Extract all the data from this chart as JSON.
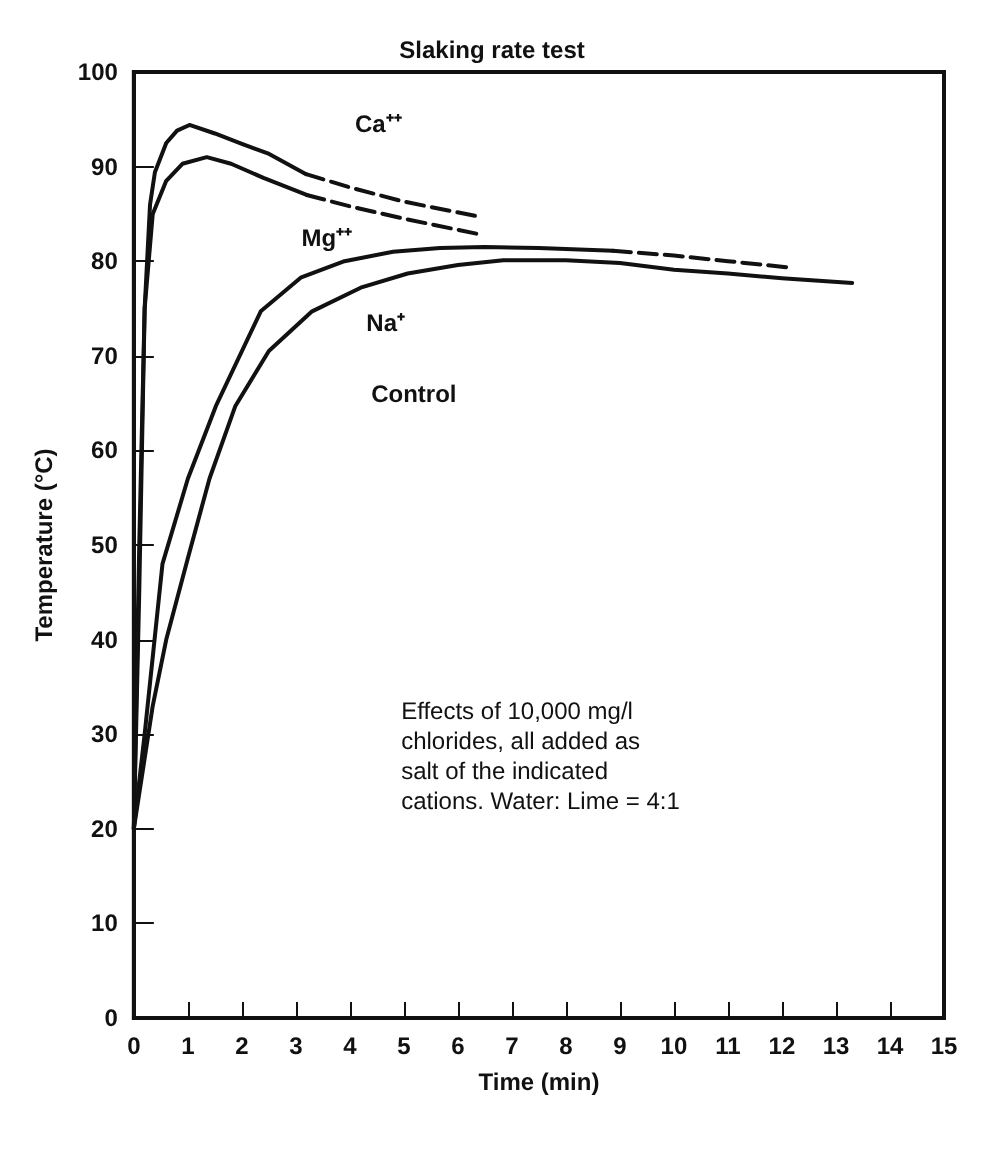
{
  "chart_data": {
    "type": "line",
    "title": "Slaking rate test",
    "xlabel": "Time (min)",
    "ylabel": "Temperature (°C)",
    "xlim": [
      0,
      15
    ],
    "xticks": [
      0,
      1,
      2,
      3,
      4,
      5,
      6,
      7,
      8,
      9,
      10,
      11,
      12,
      13,
      14,
      15
    ],
    "ylim": [
      0,
      100
    ],
    "yticks": [
      0,
      10,
      20,
      30,
      40,
      50,
      60,
      70,
      80,
      90,
      100
    ],
    "grid": false,
    "marker": "none",
    "series": [
      {
        "color": "#111111",
        "line_style": "solid",
        "x": [
          0,
          0.1,
          0.2,
          0.3,
          0.39,
          0.6,
          0.8,
          1.03,
          1.5,
          2,
          2.48,
          3.19
        ],
        "values": [
          20,
          45,
          75,
          86,
          89.4,
          92.5,
          93.8,
          94.4,
          93.5,
          92.4,
          91.4,
          89.2
        ]
      },
      {
        "color": "#111111",
        "line_style": "dashed",
        "x": [
          3.19,
          4,
          5,
          6.4
        ],
        "values": [
          89.2,
          87.8,
          86.3,
          84.7
        ]
      },
      {
        "color": "#111111",
        "line_style": "solid",
        "x": [
          0,
          0.1,
          0.2,
          0.35,
          0.6,
          0.9,
          1.35,
          1.8,
          2.4,
          3.2
        ],
        "values": [
          20,
          50,
          75,
          85,
          88.5,
          90.3,
          91,
          90.3,
          88.8,
          87
        ]
      },
      {
        "color": "#111111",
        "line_style": "dashed",
        "x": [
          3.2,
          4,
          5,
          6.35
        ],
        "values": [
          87,
          85.8,
          84.5,
          82.9
        ]
      },
      {
        "color": "#111111",
        "line_style": "solid",
        "x": [
          0,
          0.2,
          0.53,
          1,
          1.52,
          2.35,
          3.1,
          3.9,
          4.8,
          5.67,
          6.49,
          7.5,
          8.87
        ],
        "values": [
          20,
          30,
          48,
          57,
          64.7,
          74.7,
          78.3,
          80,
          81,
          81.4,
          81.5,
          81.4,
          81.1
        ]
      },
      {
        "color": "#111111",
        "line_style": "dashed",
        "x": [
          8.87,
          10,
          11,
          12.2
        ],
        "values": [
          81.1,
          80.6,
          80,
          79.3
        ]
      },
      {
        "color": "#111111",
        "line_style": "solid",
        "x": [
          0,
          0.35,
          0.6,
          1,
          1.4,
          1.88,
          2.5,
          3.3,
          4.2,
          5.07,
          6,
          6.84,
          8,
          9,
          10,
          11,
          12,
          13.3
        ],
        "values": [
          20,
          33,
          40,
          48.6,
          57,
          64.7,
          70.5,
          74.7,
          77.2,
          78.7,
          79.6,
          80.1,
          80.1,
          79.8,
          79.1,
          78.7,
          78.2,
          77.7
        ]
      }
    ],
    "annotations": [
      "Ca⁺⁺",
      "Mg⁺⁺",
      "Na⁺",
      "Control",
      "Effects of 10,000 mg/l\nchlorides, all added as\nsalt of the indicated\ncations. Water: Lime = 4:1"
    ]
  }
}
